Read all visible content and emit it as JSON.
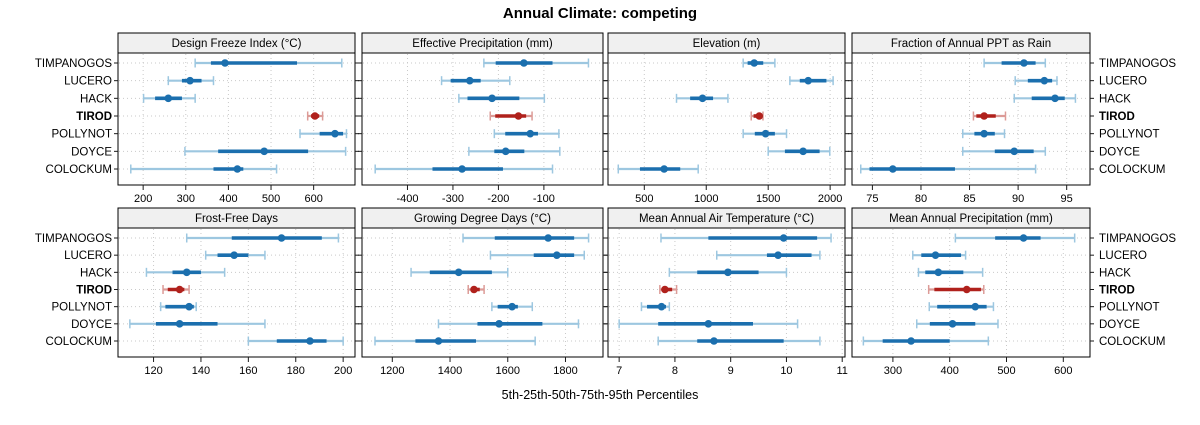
{
  "title": "Annual Climate: competing",
  "caption": "5th-25th-50th-75th-95th Percentiles",
  "colors": {
    "series_blue": "#1b6fae",
    "series_blue_light": "#9dc7e0",
    "highlight_red": "#b0211c",
    "highlight_red_light": "#dc9b97",
    "gridline": "#c9c9c9",
    "strip_background": "#f0f0f0",
    "panel_border": "#000000",
    "text": "#000000"
  },
  "chart_data": {
    "type": "dotplot-intervals",
    "percentiles": [
      5,
      25,
      50,
      75,
      95
    ],
    "sites": [
      "TIMPANOGOS",
      "LUCERO",
      "HACK",
      "TIROD",
      "POLLYNOT",
      "DOYCE",
      "COLOCKUM"
    ],
    "highlight_site": "TIROD",
    "legend_note": "whisker = 5th-95th, thick bar = 25th-75th, dot = 50th percentile",
    "panels": [
      {
        "row": 0,
        "col": 0,
        "title": "Design Freeze Index (°C)",
        "xlim": [
          141,
          697
        ],
        "ticks": [
          200,
          300,
          400,
          500,
          600
        ],
        "values": [
          [
            322,
            359,
            392,
            561,
            666
          ],
          [
            259,
            291,
            310,
            337,
            365
          ],
          [
            201,
            228,
            259,
            291,
            322
          ],
          [
            586,
            594,
            603,
            613,
            621
          ],
          [
            568,
            614,
            650,
            669,
            677
          ],
          [
            298,
            376,
            484,
            587,
            675
          ],
          [
            171,
            365,
            421,
            435,
            513
          ]
        ]
      },
      {
        "row": 0,
        "col": 1,
        "title": "Effective Precipitation (mm)",
        "xlim": [
          -500,
          30
        ],
        "ticks": [
          -400,
          -300,
          -200,
          -100
        ],
        "values": [
          [
            -232,
            -206,
            -144,
            -81,
            -2
          ],
          [
            -325,
            -305,
            -263,
            -239,
            -175
          ],
          [
            -287,
            -268,
            -214,
            -154,
            -99
          ],
          [
            -218,
            -207,
            -156,
            -139,
            -126
          ],
          [
            -209,
            -185,
            -130,
            -113,
            -67
          ],
          [
            -265,
            -209,
            -184,
            -143,
            -65
          ],
          [
            -471,
            -345,
            -280,
            -190,
            -81
          ]
        ]
      },
      {
        "row": 0,
        "col": 2,
        "title": "Elevation (m)",
        "xlim": [
          207,
          2120
        ],
        "ticks": [
          500,
          1000,
          1500,
          2000
        ],
        "values": [
          [
            1298,
            1334,
            1387,
            1460,
            1554
          ],
          [
            1675,
            1755,
            1823,
            1970,
            2024
          ],
          [
            760,
            870,
            970,
            1055,
            1175
          ],
          [
            1363,
            1382,
            1428,
            1452,
            1458
          ],
          [
            1298,
            1392,
            1479,
            1554,
            1648
          ],
          [
            1500,
            1635,
            1782,
            1915,
            1997
          ],
          [
            290,
            465,
            660,
            790,
            935
          ]
        ]
      },
      {
        "row": 0,
        "col": 3,
        "title": "Fraction of Annual PPT as Rain",
        "xlim": [
          72.9,
          97.4
        ],
        "ticks": [
          75,
          80,
          85,
          90,
          95
        ],
        "values": [
          [
            86.5,
            88.3,
            90.6,
            91.8,
            92.8
          ],
          [
            89.7,
            91.0,
            92.7,
            93.5,
            94.0
          ],
          [
            89.6,
            91.4,
            93.8,
            94.8,
            95.9
          ],
          [
            85.4,
            85.7,
            86.5,
            87.7,
            88.7
          ],
          [
            84.3,
            85.5,
            86.5,
            87.6,
            88.6
          ],
          [
            84.3,
            87.6,
            89.6,
            91.6,
            92.8
          ],
          [
            73.8,
            74.7,
            77.1,
            83.5,
            91.8
          ]
        ]
      },
      {
        "row": 1,
        "col": 0,
        "title": "Frost-Free Days",
        "xlim": [
          105,
          205
        ],
        "ticks": [
          120,
          140,
          160,
          180,
          200
        ],
        "values": [
          [
            134,
            153,
            174,
            191,
            198
          ],
          [
            142,
            147,
            154,
            160,
            167
          ],
          [
            117,
            128,
            134,
            140,
            150
          ],
          [
            124,
            126,
            131,
            133,
            135
          ],
          [
            123,
            125,
            135,
            137,
            138
          ],
          [
            110,
            121,
            131,
            147,
            167
          ],
          [
            160,
            172,
            186,
            193,
            200
          ]
        ]
      },
      {
        "row": 1,
        "col": 1,
        "title": "Growing Degree Days (°C)",
        "xlim": [
          1095,
          1930
        ],
        "ticks": [
          1200,
          1400,
          1600,
          1800
        ],
        "values": [
          [
            1445,
            1555,
            1740,
            1830,
            1880
          ],
          [
            1540,
            1690,
            1770,
            1830,
            1865
          ],
          [
            1265,
            1330,
            1430,
            1545,
            1600
          ],
          [
            1463,
            1472,
            1483,
            1503,
            1518
          ],
          [
            1545,
            1565,
            1615,
            1635,
            1685
          ],
          [
            1360,
            1495,
            1570,
            1720,
            1845
          ],
          [
            1140,
            1280,
            1360,
            1490,
            1695
          ]
        ]
      },
      {
        "row": 1,
        "col": 2,
        "title": "Mean Annual Air Temperature (°C)",
        "xlim": [
          6.8,
          11.05
        ],
        "ticks": [
          7,
          8,
          9,
          10,
          11
        ],
        "values": [
          [
            7.75,
            8.6,
            9.95,
            10.55,
            10.8
          ],
          [
            8.75,
            9.65,
            9.85,
            10.45,
            10.6
          ],
          [
            7.9,
            8.4,
            8.95,
            9.5,
            10.0
          ],
          [
            7.73,
            7.76,
            7.82,
            7.95,
            8.03
          ],
          [
            7.4,
            7.5,
            7.76,
            7.84,
            7.9
          ],
          [
            7.0,
            7.7,
            8.6,
            9.4,
            10.2
          ],
          [
            7.7,
            8.4,
            8.7,
            9.95,
            10.6
          ]
        ]
      },
      {
        "row": 1,
        "col": 3,
        "title": "Mean Annual Precipitation (mm)",
        "xlim": [
          228,
          647
        ],
        "ticks": [
          300,
          400,
          500,
          600
        ],
        "values": [
          [
            410,
            480,
            530,
            560,
            620
          ],
          [
            335,
            350,
            375,
            420,
            428
          ],
          [
            345,
            357,
            380,
            424,
            458
          ],
          [
            363,
            373,
            430,
            455,
            460
          ],
          [
            364,
            378,
            445,
            465,
            477
          ],
          [
            342,
            365,
            405,
            445,
            485
          ],
          [
            248,
            282,
            332,
            400,
            468
          ]
        ]
      }
    ]
  }
}
